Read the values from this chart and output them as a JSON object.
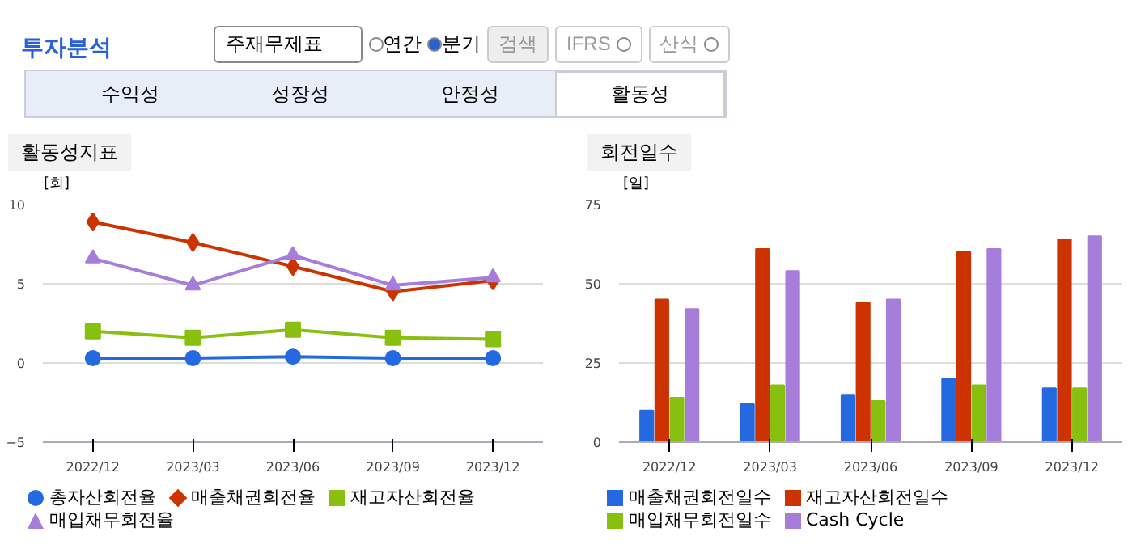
{
  "chart_data": [
    {
      "type": "other",
      "title": "투자분석",
      "annotations": [
        "주재무제표",
        "연간",
        "분기",
        "검색",
        "IFRS",
        "산식",
        "수익성",
        "성장성",
        "안정성",
        "활동성"
      ]
    },
    {
      "type": "line",
      "title": "활동성지표",
      "ylabel": "[회]",
      "categories": [
        "2022/12",
        "2023/03",
        "2023/06",
        "2023/09",
        "2023/12"
      ],
      "ylim": [
        -5,
        10
      ],
      "yticks": [
        -5,
        0,
        5,
        10
      ],
      "grid": "y",
      "legend": "bottom",
      "series": [
        {
          "name": "총자산회전율",
          "color": "#2469e0",
          "marker": "circle",
          "values": [
            0.3,
            0.3,
            0.4,
            0.3,
            0.3
          ]
        },
        {
          "name": "매출채권회전율",
          "color": "#cc3300",
          "marker": "diamond",
          "values": [
            8.9,
            7.6,
            6.1,
            4.5,
            5.2
          ]
        },
        {
          "name": "재고자산회전율",
          "color": "#88c010",
          "marker": "square",
          "values": [
            2.0,
            1.6,
            2.1,
            1.6,
            1.5
          ]
        },
        {
          "name": "매입채무회전율",
          "color": "#a77ddb",
          "marker": "triangle",
          "values": [
            6.6,
            4.9,
            6.8,
            4.9,
            5.4
          ]
        }
      ]
    },
    {
      "type": "bar",
      "title": "회전일수",
      "ylabel": "[일]",
      "categories": [
        "2022/12",
        "2023/03",
        "2023/06",
        "2023/09",
        "2023/12"
      ],
      "ylim": [
        0,
        75
      ],
      "yticks": [
        0,
        25,
        50,
        75
      ],
      "grid": "y",
      "legend": "bottom",
      "series": [
        {
          "name": "매출채권회전일수",
          "color": "#2469e0",
          "values": [
            10,
            12,
            15,
            20,
            17
          ]
        },
        {
          "name": "재고자산회전일수",
          "color": "#cc3300",
          "values": [
            45,
            61,
            44,
            60,
            64
          ]
        },
        {
          "name": "매입채무회전일수",
          "color": "#88c010",
          "values": [
            14,
            18,
            13,
            18,
            17
          ]
        },
        {
          "name": "Cash Cycle",
          "color": "#a77ddb",
          "values": [
            42,
            54,
            45,
            61,
            65
          ]
        }
      ]
    }
  ]
}
